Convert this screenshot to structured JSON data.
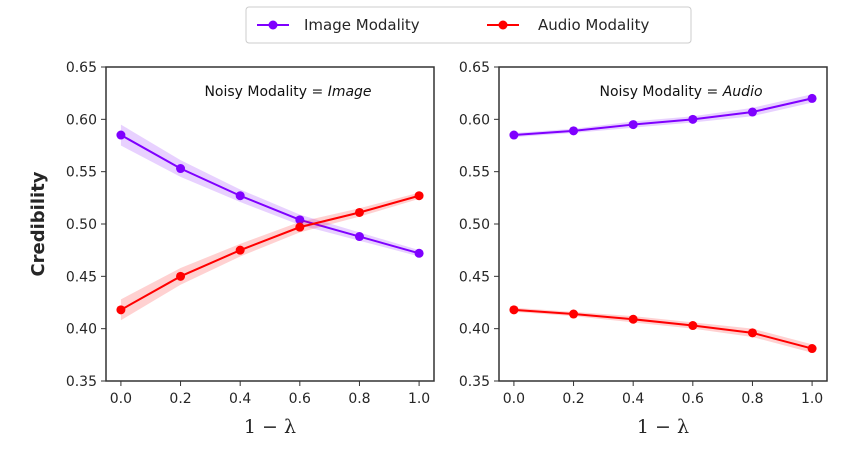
{
  "legend": [
    {
      "label": "Image Modality",
      "color": "#7f00ff"
    },
    {
      "label": "Audio Modality",
      "color": "#ff0000"
    }
  ],
  "ylabel": "Credibility",
  "chart_data": [
    {
      "type": "line",
      "annotation_prefix": "Noisy Modality = ",
      "annotation_value": "Image",
      "xlabel": "1 − λ",
      "ylabel": "Credibility",
      "xlim": [
        -0.05,
        1.05
      ],
      "ylim": [
        0.35,
        0.65
      ],
      "xticks": [
        0.0,
        0.2,
        0.4,
        0.6,
        0.8,
        1.0
      ],
      "xtick_labels": [
        "0.0",
        "0.2",
        "0.4",
        "0.6",
        "0.8",
        "1.0"
      ],
      "yticks": [
        0.35,
        0.4,
        0.45,
        0.5,
        0.55,
        0.6,
        0.65
      ],
      "ytick_labels": [
        "0.35",
        "0.40",
        "0.45",
        "0.50",
        "0.55",
        "0.60",
        "0.65"
      ],
      "x": [
        0.0,
        0.2,
        0.4,
        0.6,
        0.8,
        1.0
      ],
      "series": [
        {
          "name": "Image Modality",
          "color": "#7f00ff",
          "values": [
            0.585,
            0.553,
            0.527,
            0.504,
            0.488,
            0.472
          ],
          "band": [
            0.01,
            0.008,
            0.006,
            0.005,
            0.004,
            0.003
          ]
        },
        {
          "name": "Audio Modality",
          "color": "#ff0000",
          "values": [
            0.418,
            0.45,
            0.475,
            0.497,
            0.511,
            0.527
          ],
          "band": [
            0.01,
            0.008,
            0.006,
            0.005,
            0.004,
            0.003
          ]
        }
      ]
    },
    {
      "type": "line",
      "annotation_prefix": "Noisy Modality = ",
      "annotation_value": "Audio",
      "xlabel": "1 − λ",
      "ylabel": "",
      "xlim": [
        -0.05,
        1.05
      ],
      "ylim": [
        0.35,
        0.65
      ],
      "xticks": [
        0.0,
        0.2,
        0.4,
        0.6,
        0.8,
        1.0
      ],
      "xtick_labels": [
        "0.0",
        "0.2",
        "0.4",
        "0.6",
        "0.8",
        "1.0"
      ],
      "yticks": [
        0.35,
        0.4,
        0.45,
        0.5,
        0.55,
        0.6,
        0.65
      ],
      "ytick_labels": [
        "0.35",
        "0.40",
        "0.45",
        "0.50",
        "0.55",
        "0.60",
        "0.65"
      ],
      "x": [
        0.0,
        0.2,
        0.4,
        0.6,
        0.8,
        1.0
      ],
      "series": [
        {
          "name": "Image Modality",
          "color": "#7f00ff",
          "values": [
            0.585,
            0.589,
            0.595,
            0.6,
            0.607,
            0.62
          ],
          "band": [
            0.002,
            0.002,
            0.003,
            0.003,
            0.004,
            0.004
          ]
        },
        {
          "name": "Audio Modality",
          "color": "#ff0000",
          "values": [
            0.418,
            0.414,
            0.409,
            0.403,
            0.396,
            0.381
          ],
          "band": [
            0.002,
            0.002,
            0.003,
            0.003,
            0.004,
            0.004
          ]
        }
      ]
    }
  ]
}
